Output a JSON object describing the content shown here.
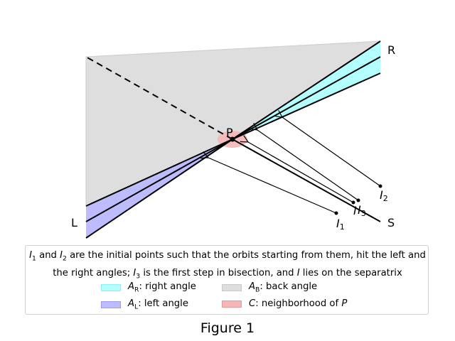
{
  "figure": {
    "labels": {
      "P": "P",
      "R": "R",
      "L": "L",
      "S": "S",
      "I1": "I",
      "I1_sub": "1",
      "I2": "I",
      "I2_sub": "2",
      "I3": "I",
      "I3_sub": "3",
      "I": "I"
    },
    "colors": {
      "right_angle": "#b3ffff",
      "back_angle": "#dedede",
      "left_angle": "#bcbcff",
      "neighborhood": "#f4b6b6",
      "lines": "#000000"
    }
  },
  "legend": {
    "description": {
      "I1": "I",
      "I1_sub": "1",
      "and": " and ",
      "I2": "I",
      "I2_sub": "2",
      "part1": " are the initial points such that the orbits starting from them, hit the left and the right angles; ",
      "I3": "I",
      "I3_sub": "3",
      "part2": " is the first step in bisection, and ",
      "I": "I",
      "part3": " lies on the separatrix"
    },
    "entries": [
      {
        "sym": "A",
        "sub": "R",
        "text": ": right angle",
        "color": "#b3ffff"
      },
      {
        "sym": "A",
        "sub": "B",
        "text": ": back angle",
        "color": "#dedede"
      },
      {
        "sym": "A",
        "sub": "L",
        "text": ": left angle",
        "color": "#bcbcff"
      },
      {
        "sym": "C",
        "sub": "",
        "text": ": neighborhood of ",
        "tail": "P",
        "color": "#f4b6b6"
      }
    ]
  },
  "caption": "Figure 1"
}
